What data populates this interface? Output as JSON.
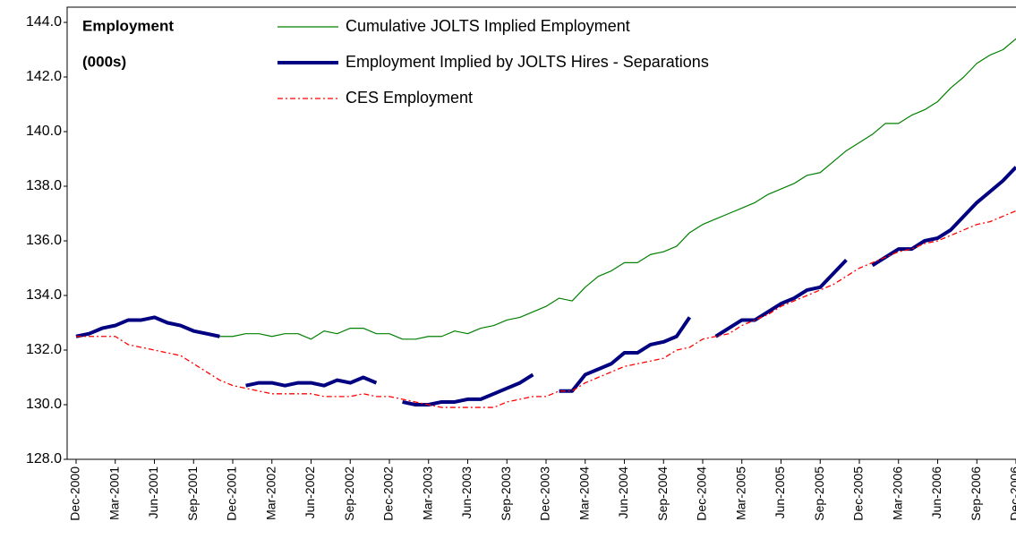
{
  "chart_data": {
    "type": "line",
    "title": "Employment",
    "subtitle": "(000s)",
    "categories": [
      "Dec-2000",
      null,
      null,
      "Mar-2001",
      null,
      null,
      "Jun-2001",
      null,
      null,
      "Sep-2001",
      null,
      null,
      "Dec-2001",
      null,
      null,
      "Mar-2002",
      null,
      null,
      "Jun-2002",
      null,
      null,
      "Sep-2002",
      null,
      null,
      "Dec-2002",
      null,
      null,
      "Mar-2003",
      null,
      null,
      "Jun-2003",
      null,
      null,
      "Sep-2003",
      null,
      null,
      "Dec-2003",
      null,
      null,
      "Mar-2004",
      null,
      null,
      "Jun-2004",
      null,
      null,
      "Sep-2004",
      null,
      null,
      "Dec-2004",
      null,
      null,
      "Mar-2005",
      null,
      null,
      "Jun-2005",
      null,
      null,
      "Sep-2005",
      null,
      null,
      "Dec-2005",
      null,
      null,
      "Mar-2006",
      null,
      null,
      "Jun-2006",
      null,
      null,
      "Sep-2006",
      null,
      null,
      "Dec-2006"
    ],
    "series": [
      {
        "name": "Cumulative JOLTS Implied Employment",
        "color": "#008000",
        "values": [
          132.5,
          132.6,
          132.8,
          132.9,
          133.1,
          133.1,
          133.2,
          133.0,
          132.9,
          132.7,
          132.6,
          132.5,
          132.5,
          132.6,
          132.6,
          132.5,
          132.6,
          132.6,
          132.4,
          132.7,
          132.6,
          132.8,
          132.8,
          132.6,
          132.6,
          132.4,
          132.4,
          132.5,
          132.5,
          132.7,
          132.6,
          132.8,
          132.9,
          133.1,
          133.2,
          133.4,
          133.6,
          133.9,
          133.8,
          134.3,
          134.7,
          134.9,
          135.2,
          135.2,
          135.5,
          135.6,
          135.8,
          136.3,
          136.6,
          136.8,
          137.0,
          137.2,
          137.4,
          137.7,
          137.9,
          138.1,
          138.4,
          138.5,
          138.9,
          139.3,
          139.6,
          139.9,
          140.3,
          140.3,
          140.6,
          140.8,
          141.1,
          141.6,
          142.0,
          142.5,
          142.8,
          143.0,
          143.4
        ]
      },
      {
        "name": "Employment Implied by JOLTS Hires - Separations",
        "color": "#000080",
        "values": [
          132.5,
          132.6,
          132.8,
          132.9,
          133.1,
          133.1,
          133.2,
          133.0,
          132.9,
          132.7,
          132.6,
          132.5,
          null,
          130.7,
          130.8,
          130.8,
          130.7,
          130.8,
          130.8,
          130.7,
          130.9,
          130.8,
          131.0,
          130.8,
          null,
          130.1,
          130.0,
          130.0,
          130.1,
          130.1,
          130.2,
          130.2,
          130.4,
          130.6,
          130.8,
          131.1,
          null,
          130.5,
          130.5,
          131.1,
          131.3,
          131.5,
          131.9,
          131.9,
          132.2,
          132.3,
          132.5,
          133.2,
          null,
          132.5,
          132.8,
          133.1,
          133.1,
          133.4,
          133.7,
          133.9,
          134.2,
          134.3,
          134.8,
          135.3,
          null,
          135.1,
          135.4,
          135.7,
          135.7,
          136.0,
          136.1,
          136.4,
          136.9,
          137.4,
          137.8,
          138.2,
          138.7
        ]
      },
      {
        "name": "CES Employment",
        "color": "#ff0000",
        "values": [
          132.5,
          132.5,
          132.5,
          132.5,
          132.2,
          132.1,
          132.0,
          131.9,
          131.8,
          131.5,
          131.2,
          130.9,
          130.7,
          130.6,
          130.5,
          130.4,
          130.4,
          130.4,
          130.4,
          130.3,
          130.3,
          130.3,
          130.4,
          130.3,
          130.3,
          130.2,
          130.1,
          130.0,
          129.9,
          129.9,
          129.9,
          129.9,
          129.9,
          130.1,
          130.2,
          130.3,
          130.3,
          130.5,
          130.5,
          130.8,
          131.0,
          131.2,
          131.4,
          131.5,
          131.6,
          131.7,
          132.0,
          132.1,
          132.4,
          132.5,
          132.6,
          132.9,
          133.1,
          133.3,
          133.6,
          133.8,
          134.0,
          134.2,
          134.4,
          134.7,
          135.0,
          135.2,
          135.4,
          135.6,
          135.7,
          135.9,
          136.0,
          136.2,
          136.4,
          136.6,
          136.7,
          136.9,
          137.1
        ]
      }
    ],
    "ylim": [
      128,
      144
    ],
    "yticks": [
      {
        "value": 128,
        "label": "128.0"
      },
      {
        "value": 130,
        "label": "130.0"
      },
      {
        "value": 132,
        "label": "132.0"
      },
      {
        "value": 134,
        "label": "134.0"
      },
      {
        "value": 136,
        "label": "136.0"
      },
      {
        "value": 138,
        "label": "138.0"
      },
      {
        "value": 140,
        "label": "140.0"
      },
      {
        "value": 142,
        "label": "142.0"
      },
      {
        "value": 144,
        "label": "144.0"
      }
    ],
    "grid": false
  }
}
